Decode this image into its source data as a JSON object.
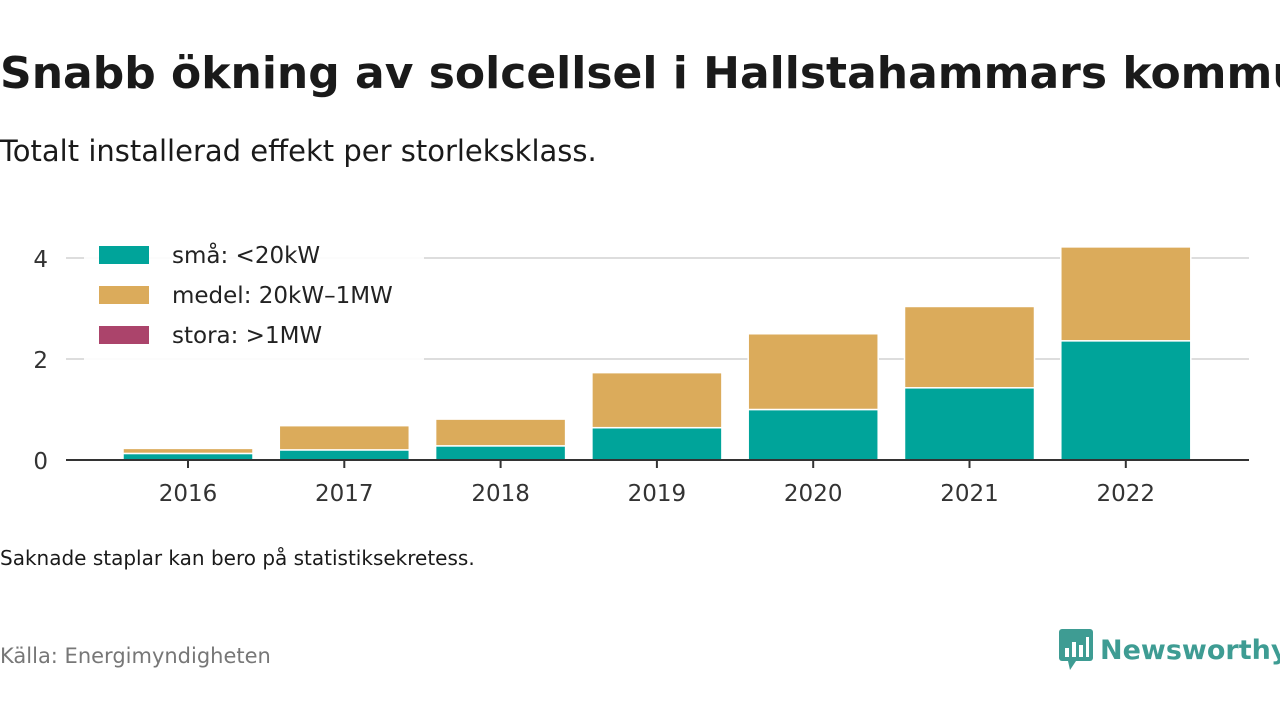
{
  "title": "Snabb ökning av solcellsel i Hallstahammars kommun",
  "subtitle": "Totalt installerad effekt per storleksklass.",
  "note": "Saknade staplar kan bero på statistiksekretess.",
  "source": "Källa: Energimyndigheten",
  "brand": {
    "name": "Newsworthy",
    "color": "#3e9c93"
  },
  "chart_data": {
    "type": "bar",
    "stacked": true,
    "categories": [
      "2016",
      "2017",
      "2018",
      "2019",
      "2020",
      "2021",
      "2022"
    ],
    "series": [
      {
        "name": "små: <20kW",
        "color": "#00a49a",
        "values": [
          0.13,
          0.2,
          0.28,
          0.64,
          1.0,
          1.43,
          2.36
        ]
      },
      {
        "name": "medel: 20kW–1MW",
        "color": "#dbab5b",
        "values": [
          0.1,
          0.48,
          0.53,
          1.09,
          1.5,
          1.61,
          1.86
        ]
      },
      {
        "name": "stora: >1MW",
        "color": "#ab446b",
        "values": [
          0,
          0,
          0,
          0,
          0,
          0,
          0
        ]
      }
    ],
    "yticks": [
      0,
      2,
      4
    ],
    "ylim": [
      0,
      4.4
    ],
    "grid": true,
    "legend": "top-left"
  }
}
